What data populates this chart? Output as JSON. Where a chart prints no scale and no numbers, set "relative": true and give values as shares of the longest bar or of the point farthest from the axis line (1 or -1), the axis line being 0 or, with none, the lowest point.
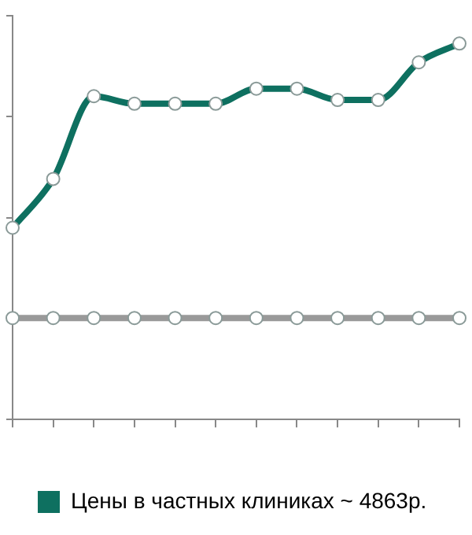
{
  "chart_data": {
    "type": "line",
    "relative": true,
    "categories": [
      null,
      null,
      null,
      null,
      null,
      null,
      null,
      null,
      null,
      null,
      null,
      null
    ],
    "series": [
      {
        "name": "Цены в частных клиниках ~ 4863р.",
        "color": "#0e7060",
        "values": [
          0.51,
          0.64,
          0.86,
          0.84,
          0.84,
          0.84,
          0.88,
          0.88,
          0.85,
          0.85,
          0.95,
          1
        ]
      },
      {
        "color": "#999999",
        "values": [
          0.27,
          0.27,
          0.27,
          0.27,
          0.27,
          0.27,
          0.27,
          0.27,
          0.27,
          0.27,
          0.27,
          0.27
        ]
      }
    ],
    "legend": "bottom",
    "marker": "circle",
    "line_style": "solid"
  }
}
